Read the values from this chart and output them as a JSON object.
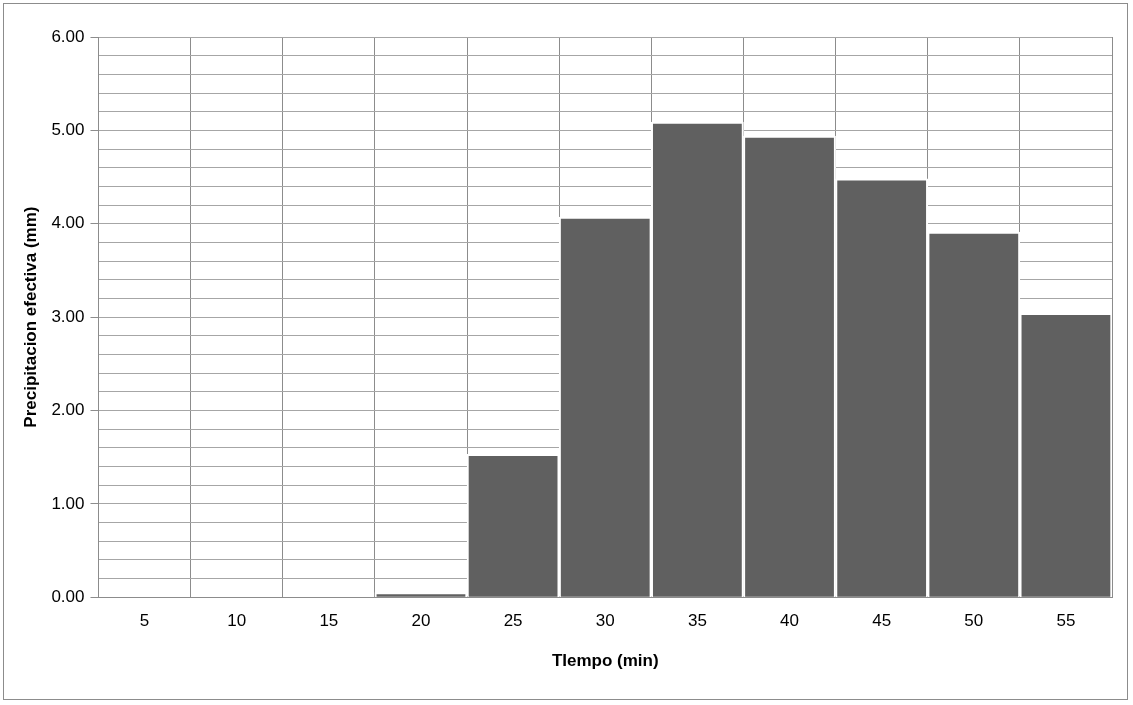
{
  "chart_data": {
    "type": "bar",
    "xlabel": "TIempo (min)",
    "ylabel": "Precipitacion efectiva (mm)",
    "categories": [
      "5",
      "10",
      "15",
      "20",
      "25",
      "30",
      "35",
      "40",
      "45",
      "50",
      "55"
    ],
    "values": [
      0,
      0,
      0,
      0.05,
      1.53,
      4.07,
      5.09,
      4.94,
      4.48,
      3.91,
      3.04
    ],
    "color": "#606060",
    "ylim": [
      0,
      6
    ],
    "yticks": [
      {
        "value": 0,
        "label": "0.00"
      },
      {
        "value": 0.2,
        "label": null
      },
      {
        "value": 0.4,
        "label": null
      },
      {
        "value": 0.6,
        "label": null
      },
      {
        "value": 0.8,
        "label": null
      },
      {
        "value": 1,
        "label": "1.00"
      },
      {
        "value": 1.2,
        "label": null
      },
      {
        "value": 1.4,
        "label": null
      },
      {
        "value": 1.6,
        "label": null
      },
      {
        "value": 1.8,
        "label": null
      },
      {
        "value": 2,
        "label": "2.00"
      },
      {
        "value": 2.2,
        "label": null
      },
      {
        "value": 2.4,
        "label": null
      },
      {
        "value": 2.6,
        "label": null
      },
      {
        "value": 2.8,
        "label": null
      },
      {
        "value": 3,
        "label": "3.00"
      },
      {
        "value": 3.2,
        "label": null
      },
      {
        "value": 3.4,
        "label": null
      },
      {
        "value": 3.6,
        "label": null
      },
      {
        "value": 3.8,
        "label": null
      },
      {
        "value": 4,
        "label": "4.00"
      },
      {
        "value": 4.2,
        "label": null
      },
      {
        "value": 4.4,
        "label": null
      },
      {
        "value": 4.6,
        "label": null
      },
      {
        "value": 4.8,
        "label": null
      },
      {
        "value": 5,
        "label": "5.00"
      },
      {
        "value": 5.2,
        "label": null
      },
      {
        "value": 5.4,
        "label": null
      },
      {
        "value": 5.6,
        "label": null
      },
      {
        "value": 5.8,
        "label": null
      },
      {
        "value": 6,
        "label": "6.00"
      }
    ],
    "grid": true
  }
}
